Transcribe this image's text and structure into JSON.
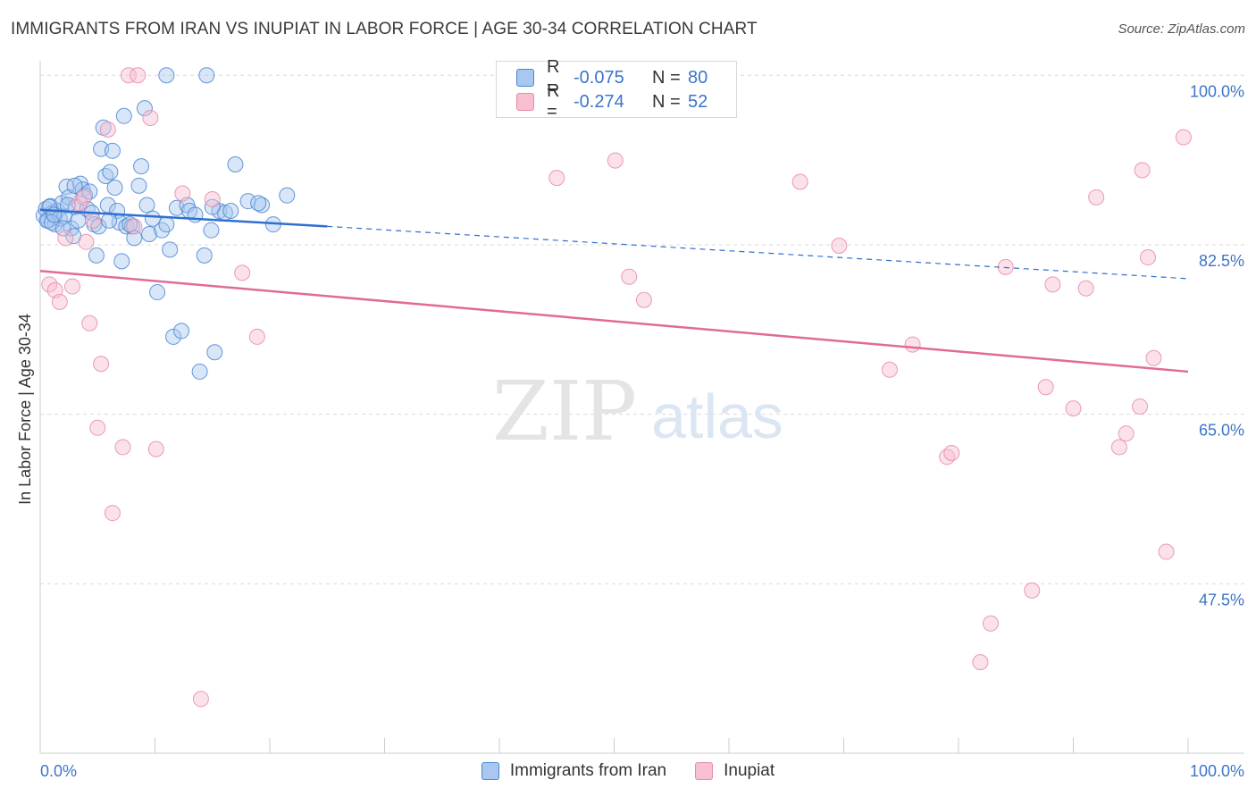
{
  "header": {
    "title": "IMMIGRANTS FROM IRAN VS INUPIAT IN LABOR FORCE | AGE 30-34 CORRELATION CHART",
    "source": "Source: ZipAtlas.com"
  },
  "watermark": {
    "zip": "ZIP",
    "atlas": "atlas"
  },
  "legend": {
    "rows": [
      {
        "r_label": "R =",
        "r_value": "-0.075",
        "n_label": "N =",
        "n_value": "80"
      },
      {
        "r_label": "R =",
        "r_value": "-0.274",
        "n_label": "N =",
        "n_value": "52"
      }
    ]
  },
  "colors": {
    "iran_fill": "#a8c8f0",
    "iran_stroke": "#4a86d4",
    "iran_line": "#2f6fd0",
    "inupiat_fill": "#f7bfd0",
    "inupiat_stroke": "#e88aa8",
    "inupiat_line": "#e06c95",
    "grid": "#d9d9d9",
    "tick_text": "#3d74c9"
  },
  "chart_data": {
    "type": "scatter",
    "title": "IMMIGRANTS FROM IRAN VS INUPIAT IN LABOR FORCE | AGE 30-34 CORRELATION CHART",
    "xlabel": "",
    "ylabel": "In Labor Force | Age 30-34",
    "xlim": [
      0,
      100
    ],
    "ylim": [
      30,
      101.5
    ],
    "x_tick_labels": [
      "0.0%",
      "100.0%"
    ],
    "y_ticks": [
      {
        "value": 100,
        "label": "100.0%"
      },
      {
        "value": 82.5,
        "label": "82.5%"
      },
      {
        "value": 65,
        "label": "65.0%"
      },
      {
        "value": 47.5,
        "label": "47.5%"
      }
    ],
    "series": [
      {
        "name": "Immigrants from Iran",
        "trend": {
          "x": [
            0,
            25
          ],
          "y": [
            86.1,
            84.4
          ],
          "dashed_to": [
            100,
            79.0
          ]
        },
        "points": [
          [
            0.3,
            85.5
          ],
          [
            0.5,
            86.2
          ],
          [
            0.7,
            85.0
          ],
          [
            0.9,
            86.5
          ],
          [
            1.1,
            85.8
          ],
          [
            1.3,
            84.6
          ],
          [
            1.5,
            86.0
          ],
          [
            1.7,
            85.2
          ],
          [
            1.9,
            86.8
          ],
          [
            2.1,
            85.4
          ],
          [
            2.3,
            88.5
          ],
          [
            2.5,
            87.4
          ],
          [
            2.7,
            84.2
          ],
          [
            2.9,
            83.4
          ],
          [
            3.1,
            86.4
          ],
          [
            3.3,
            85.0
          ],
          [
            3.5,
            88.8
          ],
          [
            3.7,
            88.2
          ],
          [
            3.9,
            87.6
          ],
          [
            4.1,
            86.2
          ],
          [
            4.3,
            88.0
          ],
          [
            4.5,
            85.8
          ],
          [
            4.7,
            84.6
          ],
          [
            4.9,
            81.4
          ],
          [
            5.1,
            84.4
          ],
          [
            5.3,
            92.4
          ],
          [
            5.5,
            94.6
          ],
          [
            5.7,
            89.6
          ],
          [
            5.9,
            86.6
          ],
          [
            6.1,
            90.0
          ],
          [
            6.3,
            92.2
          ],
          [
            6.5,
            88.4
          ],
          [
            6.7,
            86.0
          ],
          [
            6.9,
            84.8
          ],
          [
            7.1,
            80.8
          ],
          [
            7.3,
            95.8
          ],
          [
            7.5,
            84.4
          ],
          [
            8.0,
            84.4
          ],
          [
            8.2,
            83.2
          ],
          [
            8.6,
            88.6
          ],
          [
            8.8,
            90.6
          ],
          [
            9.1,
            96.6
          ],
          [
            9.3,
            86.6
          ],
          [
            9.5,
            83.6
          ],
          [
            9.8,
            85.2
          ],
          [
            10.2,
            77.6
          ],
          [
            10.6,
            84.0
          ],
          [
            11.0,
            84.6
          ],
          [
            11.3,
            82.0
          ],
          [
            11.6,
            73.0
          ],
          [
            11.9,
            86.3
          ],
          [
            12.3,
            73.6
          ],
          [
            12.8,
            86.6
          ],
          [
            13.0,
            86.0
          ],
          [
            13.9,
            69.4
          ],
          [
            14.3,
            81.4
          ],
          [
            14.9,
            84.0
          ],
          [
            15.2,
            71.4
          ],
          [
            15.6,
            86.0
          ],
          [
            16.1,
            85.8
          ],
          [
            16.6,
            86.0
          ],
          [
            17.0,
            90.8
          ],
          [
            18.1,
            87.0
          ],
          [
            19.3,
            86.6
          ],
          [
            20.3,
            84.6
          ],
          [
            21.5,
            87.6
          ],
          [
            11.0,
            100.0
          ],
          [
            14.5,
            100.0
          ],
          [
            0.6,
            85.0
          ],
          [
            0.8,
            86.4
          ],
          [
            1.0,
            84.8
          ],
          [
            1.2,
            85.6
          ],
          [
            2.0,
            84.2
          ],
          [
            2.4,
            86.6
          ],
          [
            3.0,
            88.6
          ],
          [
            6.0,
            85.0
          ],
          [
            7.8,
            84.6
          ],
          [
            13.5,
            85.6
          ],
          [
            15.0,
            86.4
          ],
          [
            19.0,
            86.8
          ]
        ]
      },
      {
        "name": "Inupiat",
        "trend": {
          "x": [
            0,
            100
          ],
          "y": [
            79.8,
            69.4
          ]
        },
        "points": [
          [
            0.8,
            78.4
          ],
          [
            1.3,
            77.8
          ],
          [
            1.7,
            76.6
          ],
          [
            2.2,
            83.2
          ],
          [
            2.8,
            78.2
          ],
          [
            3.4,
            86.8
          ],
          [
            3.8,
            87.4
          ],
          [
            4.0,
            82.8
          ],
          [
            4.3,
            74.4
          ],
          [
            4.6,
            85.0
          ],
          [
            5.0,
            63.6
          ],
          [
            5.3,
            70.2
          ],
          [
            5.9,
            94.4
          ],
          [
            6.3,
            54.8
          ],
          [
            7.2,
            61.6
          ],
          [
            7.7,
            100.0
          ],
          [
            8.5,
            100.0
          ],
          [
            8.2,
            84.4
          ],
          [
            9.6,
            95.6
          ],
          [
            10.1,
            61.4
          ],
          [
            12.4,
            87.8
          ],
          [
            14.0,
            35.6
          ],
          [
            15.0,
            87.2
          ],
          [
            17.6,
            79.6
          ],
          [
            18.9,
            73.0
          ],
          [
            45.0,
            89.4
          ],
          [
            50.1,
            91.2
          ],
          [
            51.3,
            79.2
          ],
          [
            52.6,
            76.8
          ],
          [
            66.2,
            89.0
          ],
          [
            69.6,
            82.4
          ],
          [
            74.0,
            69.6
          ],
          [
            76.0,
            72.2
          ],
          [
            79.0,
            60.6
          ],
          [
            79.4,
            61.0
          ],
          [
            81.9,
            39.4
          ],
          [
            82.8,
            43.4
          ],
          [
            84.1,
            80.2
          ],
          [
            86.4,
            46.8
          ],
          [
            87.6,
            67.8
          ],
          [
            88.2,
            78.4
          ],
          [
            90.0,
            65.6
          ],
          [
            91.1,
            78.0
          ],
          [
            92.0,
            87.4
          ],
          [
            94.0,
            61.6
          ],
          [
            94.6,
            63.0
          ],
          [
            95.8,
            65.8
          ],
          [
            96.0,
            90.2
          ],
          [
            96.5,
            81.2
          ],
          [
            97.0,
            70.8
          ],
          [
            98.1,
            50.8
          ],
          [
            99.6,
            93.6
          ]
        ]
      }
    ]
  }
}
